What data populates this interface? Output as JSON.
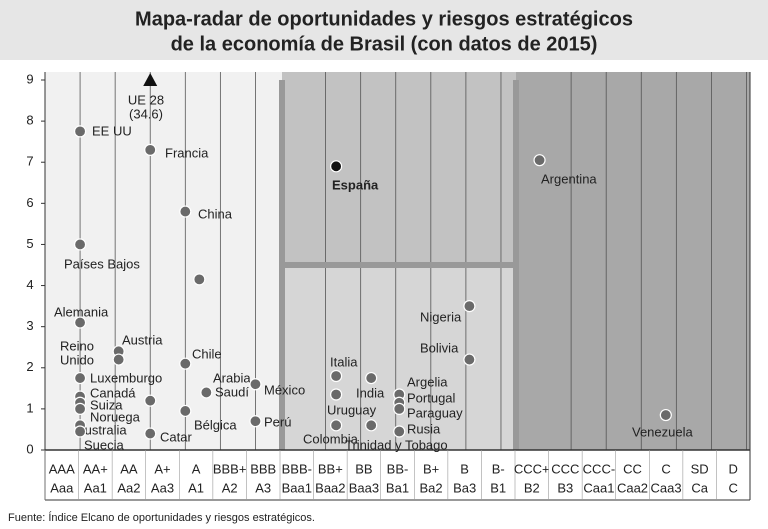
{
  "title": [
    "Mapa-radar de oportunidades y riesgos estratégicos",
    "de la economía de Brasil (con datos de 2015)"
  ],
  "chart_data": {
    "type": "scatter",
    "x_categories": [
      {
        "top": "AAA",
        "bottom": "Aaa"
      },
      {
        "top": "AA+",
        "bottom": "Aa1"
      },
      {
        "top": "AA",
        "bottom": "Aa2"
      },
      {
        "top": "A+",
        "bottom": "Aa3"
      },
      {
        "top": "A",
        "bottom": "A1"
      },
      {
        "top": "BBB+",
        "bottom": "A2"
      },
      {
        "top": "BBB",
        "bottom": "A3"
      },
      {
        "top": "BBB-",
        "bottom": "Baa1"
      },
      {
        "top": "BB+",
        "bottom": "Baa2"
      },
      {
        "top": "BB",
        "bottom": "Baa3"
      },
      {
        "top": "BB-",
        "bottom": "Ba1"
      },
      {
        "top": "B+",
        "bottom": "Ba2"
      },
      {
        "top": "B",
        "bottom": "Ba3"
      },
      {
        "top": "B-",
        "bottom": "B1"
      },
      {
        "top": "CCC+",
        "bottom": "B2"
      },
      {
        "top": "CCC",
        "bottom": "B3"
      },
      {
        "top": "CCC-",
        "bottom": "Caa1"
      },
      {
        "top": "CC",
        "bottom": "Caa2"
      },
      {
        "top": "C",
        "bottom": "Caa3"
      },
      {
        "top": "SD",
        "bottom": "Ca"
      },
      {
        "top": "D",
        "bottom": "C"
      }
    ],
    "xlim": [
      -1,
      19.1
    ],
    "ylim": [
      0,
      9
    ],
    "yticks": [
      0,
      1,
      2,
      3,
      4,
      5,
      6,
      7,
      8,
      9
    ],
    "points": [
      {
        "name": [
          "EE UU"
        ],
        "x": 0,
        "y": 7.75
      },
      {
        "name": [
          "UE 28",
          "(34.6)"
        ],
        "x": 2,
        "y": 9,
        "marker": "triangle"
      },
      {
        "name": [
          "Francia"
        ],
        "x": 2,
        "y": 7.3
      },
      {
        "name": [
          "China"
        ],
        "x": 3,
        "y": 5.8
      },
      {
        "name": [
          "Países Bajos"
        ],
        "x": 0,
        "y": 5
      },
      {
        "name": null,
        "x": 3.4,
        "y": 4.15
      },
      {
        "name": [
          "Alemania"
        ],
        "x": 0,
        "y": 3.1
      },
      {
        "name": [
          "Austria"
        ],
        "x": 1.1,
        "y": 2.4
      },
      {
        "name": [
          "Reino",
          "Unido"
        ],
        "x": 1.1,
        "y": 2.2
      },
      {
        "name": [
          "Chile"
        ],
        "x": 3,
        "y": 2.1
      },
      {
        "name": [
          "Luxemburgo"
        ],
        "x": 0,
        "y": 1.75
      },
      {
        "name": [
          "Canadá"
        ],
        "x": 0,
        "y": 1.3
      },
      {
        "name": [
          "Suiza"
        ],
        "x": 0,
        "y": 1.15
      },
      {
        "name": [
          "Noruega"
        ],
        "x": 0,
        "y": 1
      },
      {
        "name": [
          "Australia"
        ],
        "x": 0,
        "y": 0.6
      },
      {
        "name": [
          "Suecia"
        ],
        "x": 0,
        "y": 0.45
      },
      {
        "name": null,
        "x": 2,
        "y": 1.2
      },
      {
        "name": [
          "Catar"
        ],
        "x": 2,
        "y": 0.4
      },
      {
        "name": [
          "Bélgica"
        ],
        "x": 3,
        "y": 0.95
      },
      {
        "name": [
          "Arabia",
          "Saudí"
        ],
        "x": 3.6,
        "y": 1.4
      },
      {
        "name": [
          "México"
        ],
        "x": 5,
        "y": 1.6
      },
      {
        "name": [
          "Perú"
        ],
        "x": 5,
        "y": 0.7
      },
      {
        "name": [
          "España"
        ],
        "x": 7.3,
        "y": 6.9,
        "marker": "black"
      },
      {
        "name": [
          "Italia"
        ],
        "x": 7.3,
        "y": 1.8
      },
      {
        "name": [
          "India"
        ],
        "x": 8.3,
        "y": 1.75
      },
      {
        "name": [
          "Uruguay"
        ],
        "x": 7.3,
        "y": 1.35
      },
      {
        "name": [
          "Colombia"
        ],
        "x": 7.3,
        "y": 0.6
      },
      {
        "name": [
          "Trinidad y Tobago"
        ],
        "x": 8.3,
        "y": 0.6
      },
      {
        "name": [
          "Argelia"
        ],
        "x": 9.1,
        "y": 1.35
      },
      {
        "name": [
          "Portugal"
        ],
        "x": 9.1,
        "y": 1.15
      },
      {
        "name": [
          "Paraguay"
        ],
        "x": 9.1,
        "y": 1
      },
      {
        "name": [
          "Rusia"
        ],
        "x": 9.1,
        "y": 0.45
      },
      {
        "name": [
          "Nigeria"
        ],
        "x": 11.1,
        "y": 3.5
      },
      {
        "name": [
          "Bolivia"
        ],
        "x": 11.1,
        "y": 2.2
      },
      {
        "name": [
          "Argentina"
        ],
        "x": 13.1,
        "y": 7.05
      },
      {
        "name": [
          "Venezuela"
        ],
        "x": 16.7,
        "y": 0.85
      }
    ]
  },
  "source": "Fuente: Índice Elcano de oportunidades y riesgos estratégicos."
}
